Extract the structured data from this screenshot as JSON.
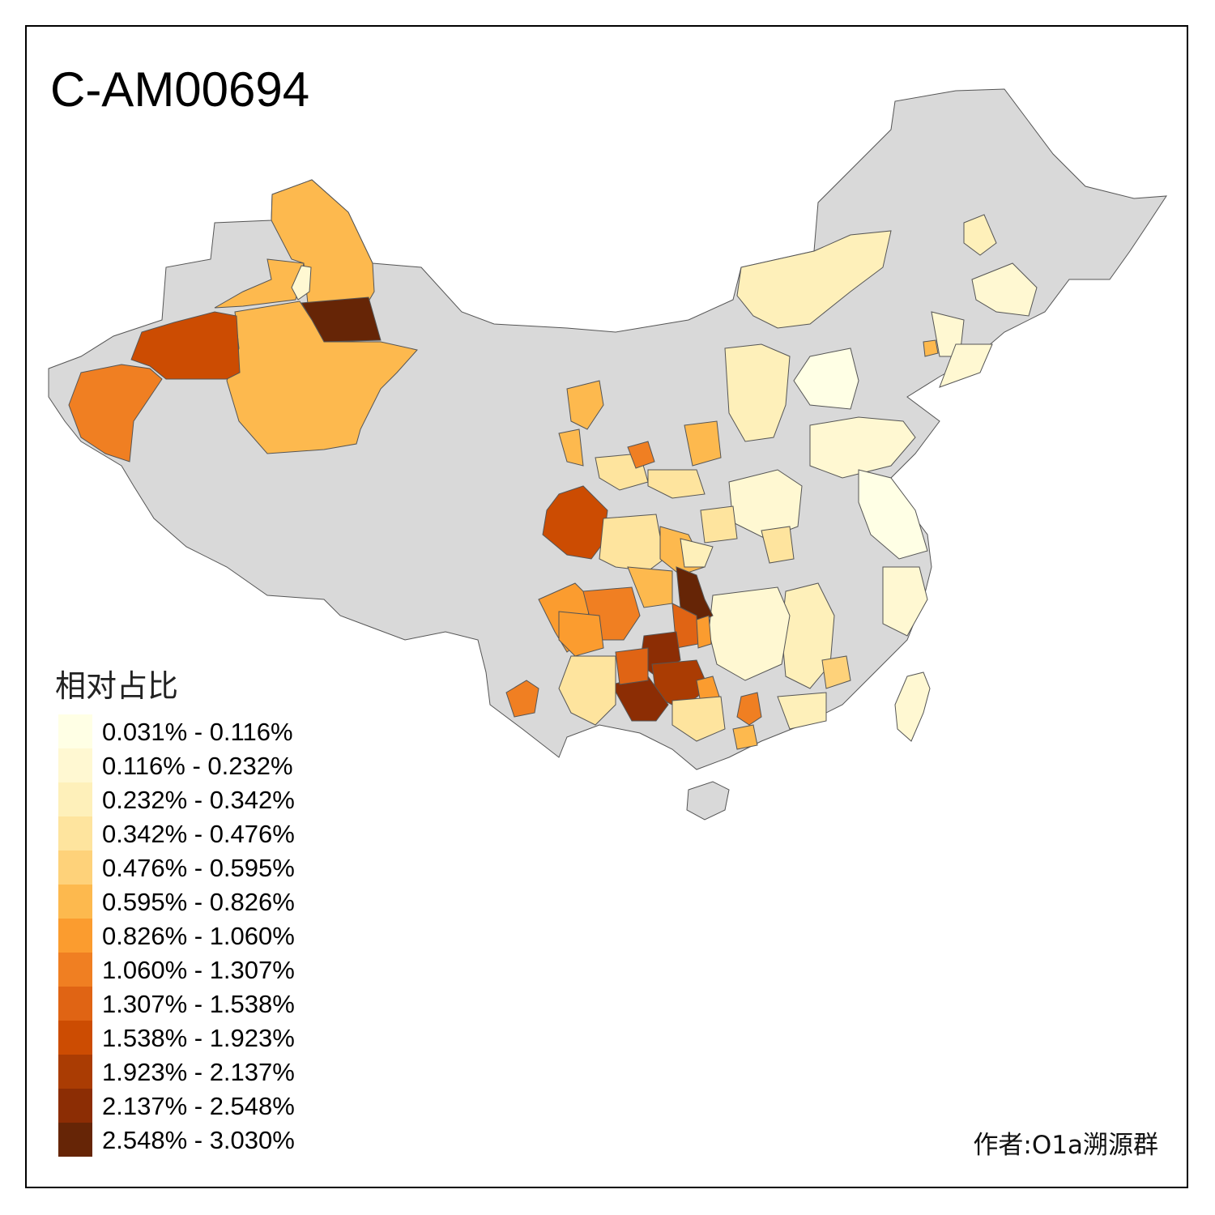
{
  "title": "C-AM00694",
  "legend": {
    "title": "相对占比",
    "items": [
      {
        "label": "0.031% - 0.116%",
        "color": "#FFFFE5"
      },
      {
        "label": "0.116% - 0.232%",
        "color": "#FFF8D2"
      },
      {
        "label": "0.232% - 0.342%",
        "color": "#FEF0BA"
      },
      {
        "label": "0.342% - 0.476%",
        "color": "#FEE49E"
      },
      {
        "label": "0.476% - 0.595%",
        "color": "#FED27A"
      },
      {
        "label": "0.595% - 0.826%",
        "color": "#FDB94E"
      },
      {
        "label": "0.826% - 1.060%",
        "color": "#FB9C2F"
      },
      {
        "label": "1.060% - 1.307%",
        "color": "#F07F22"
      },
      {
        "label": "1.307% - 1.538%",
        "color": "#E06414"
      },
      {
        "label": "1.538% - 1.923%",
        "color": "#CC4C02"
      },
      {
        "label": "1.923% - 2.137%",
        "color": "#AA3C03"
      },
      {
        "label": "2.137% - 2.548%",
        "color": "#8C2D04"
      },
      {
        "label": "2.548% - 3.030%",
        "color": "#662506"
      }
    ]
  },
  "author": "作者:O1a溯源群",
  "colors": {
    "base": "#D9D9D9",
    "border": "#555555"
  }
}
